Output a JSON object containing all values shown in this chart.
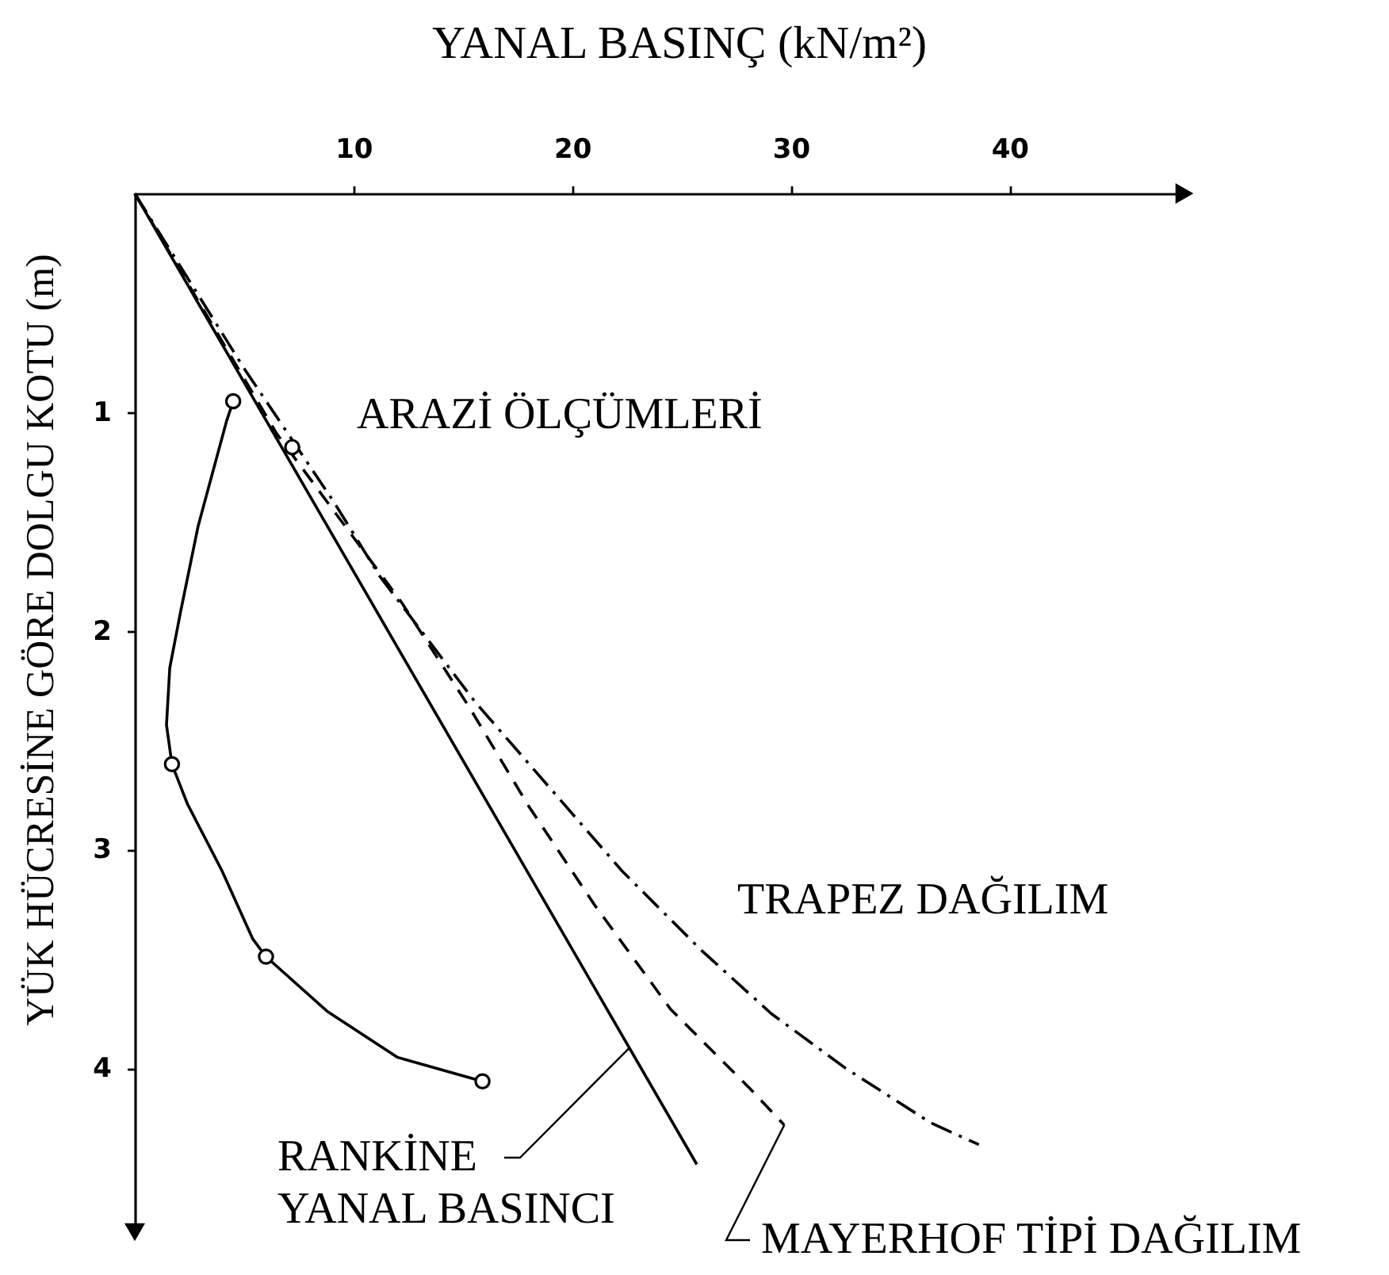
{
  "chart_data": {
    "type": "line",
    "xlabel": "YANAL BASINÇ (kN/m²)",
    "ylabel": "YÜK HÜCRESİNE GÖRE DOLGU KOTU (m)",
    "xlim": [
      0,
      48
    ],
    "xticks": [
      10,
      20,
      30,
      40
    ],
    "ylim": [
      4.75,
      0
    ],
    "yticks": [
      1,
      2,
      3,
      4
    ],
    "grid": false,
    "series": [
      {
        "color": "#000000",
        "line_style": "solid",
        "marker": "none",
        "x": [
          4.5,
          4.2,
          2.9,
          2.1,
          1.6,
          1.45,
          1.7,
          2.4,
          4.0,
          5.4,
          6.0,
          8.8,
          12.0,
          15.9
        ],
        "values": [
          0.95,
          1.04,
          1.52,
          1.91,
          2.17,
          2.43,
          2.61,
          2.79,
          3.1,
          3.41,
          3.49,
          3.74,
          3.95,
          4.06
        ]
      },
      {
        "name": "ARAZİ ÖLÇÜMLERİ",
        "type": "scatter",
        "color": "#000000",
        "marker": "circle",
        "x": [
          4.5,
          7.2,
          1.7,
          6.0,
          15.9
        ],
        "values": [
          0.95,
          1.16,
          2.61,
          3.49,
          4.06
        ]
      },
      {
        "name": "RANKİNE\nYANAL BASINCI",
        "color": "#000000",
        "line_style": "solid",
        "marker": "none",
        "x": [
          0,
          25.7
        ],
        "values": [
          0,
          4.44
        ]
      },
      {
        "name": "MAYERHOF TİPİ DAĞILIM",
        "color": "#000000",
        "line_style": "dashed",
        "marker": "none",
        "x": [
          0,
          6.5,
          12.2,
          15.3,
          18.0,
          21.0,
          24.5,
          28.1,
          29.7
        ],
        "values": [
          0,
          1.1,
          1.87,
          2.35,
          2.8,
          3.25,
          3.73,
          4.09,
          4.26
        ]
      },
      {
        "name": "TRAPEZ DAĞILIM",
        "color": "#000000",
        "line_style": "dashdot",
        "marker": "none",
        "x": [
          0,
          5,
          9.1,
          11.2,
          15.6,
          18.3,
          22.3,
          25.9,
          29.1,
          32.5,
          36.4,
          38.6
        ],
        "values": [
          0,
          0.8,
          1.41,
          1.75,
          2.33,
          2.64,
          3.1,
          3.46,
          3.75,
          4.0,
          4.25,
          4.35
        ]
      }
    ]
  }
}
